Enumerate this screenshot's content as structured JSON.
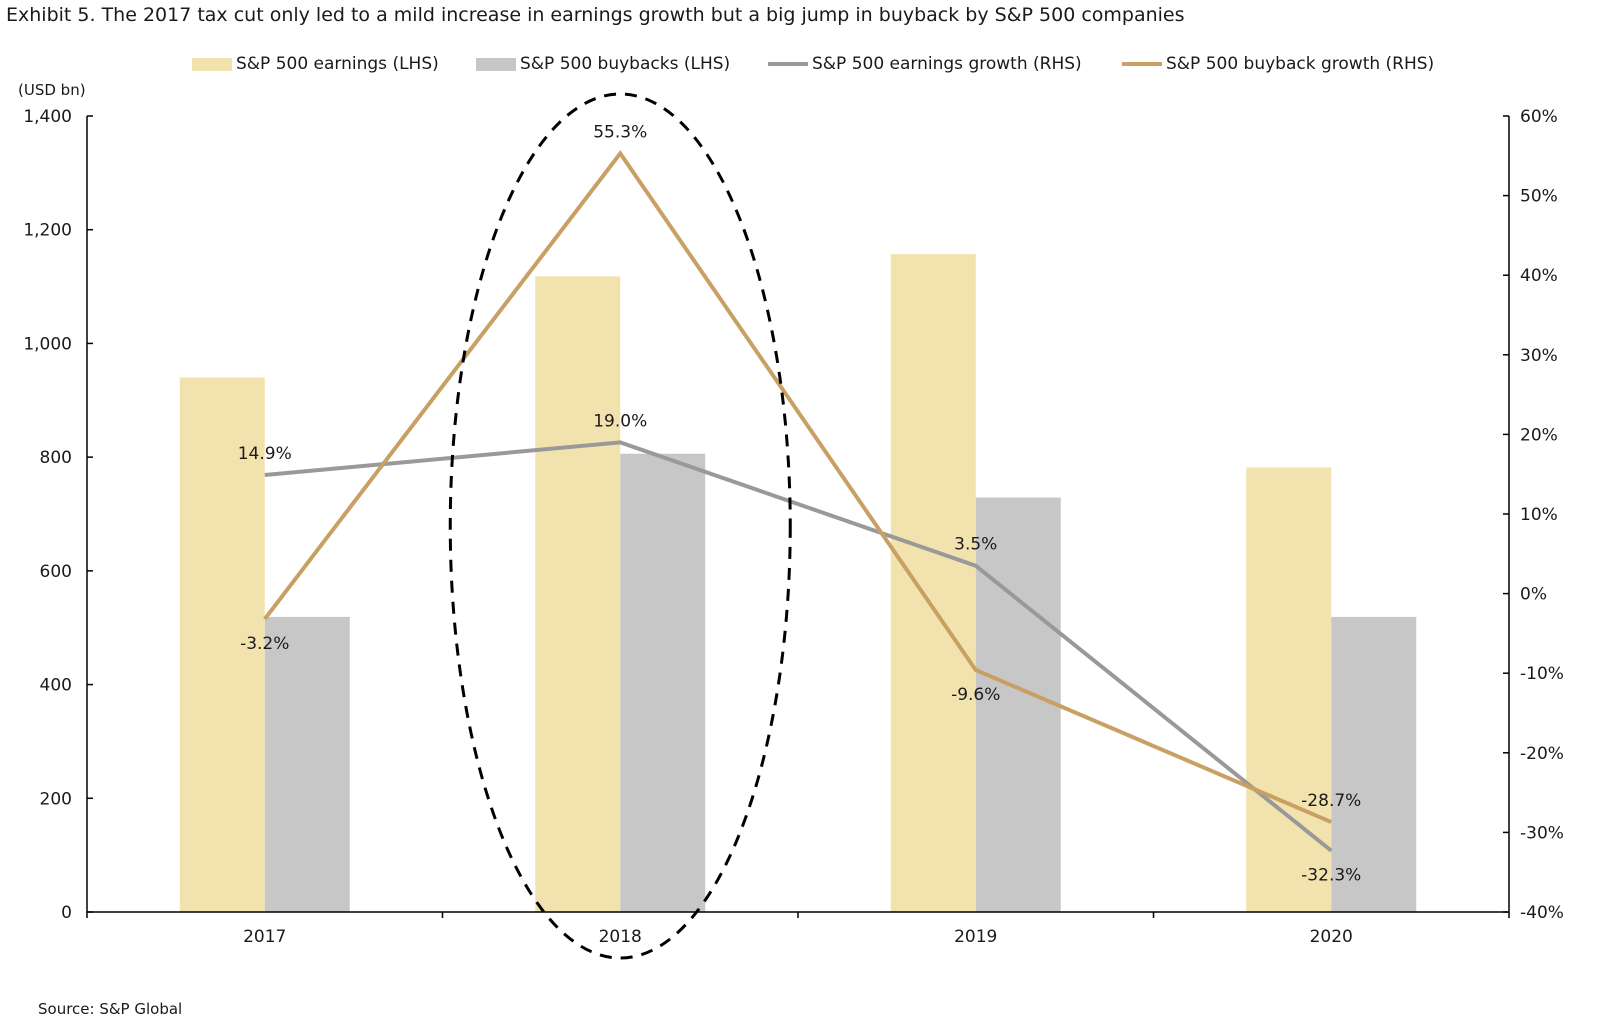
{
  "title": "Exhibit 5. The 2017 tax cut only led to a mild increase in earnings growth but a big jump in buyback by S&P 500 companies",
  "source": "Source: S&P Global",
  "colors": {
    "earnings": "#f2e3ae",
    "buybacks": "#c7c7c7",
    "earnings_growth": "#999999",
    "buyback_growth": "#c9a064",
    "axis": "#000000"
  },
  "legend": [
    {
      "label": "S&P 500 earnings (LHS)",
      "kind": "box",
      "color_key": "earnings"
    },
    {
      "label": "S&P 500 buybacks (LHS)",
      "kind": "box",
      "color_key": "buybacks"
    },
    {
      "label": "S&P 500 earnings growth (RHS)",
      "kind": "line",
      "color_key": "earnings_growth"
    },
    {
      "label": "S&P 500 buyback growth (RHS)",
      "kind": "line",
      "color_key": "buyback_growth"
    }
  ],
  "chart_data": {
    "type": "bar",
    "title": "Exhibit 5. The 2017 tax cut only led to a mild increase in earnings growth but a big jump in buyback by S&P 500 companies",
    "categories": [
      "2017",
      "2018",
      "2019",
      "2020"
    ],
    "y_left": {
      "label": "(USD bn)",
      "range": [
        0,
        1400
      ],
      "ticks": [
        0,
        200,
        400,
        600,
        800,
        1000,
        1200,
        1400
      ],
      "tick_labels": [
        "0",
        "200",
        "400",
        "600",
        "800",
        "1,000",
        "1,200",
        "1,400"
      ]
    },
    "y_right": {
      "range": [
        -40,
        60
      ],
      "ticks": [
        -40,
        -30,
        -20,
        -10,
        0,
        10,
        20,
        30,
        40,
        50,
        60
      ],
      "tick_labels": [
        "-40%",
        "-30%",
        "-20%",
        "-10%",
        "0%",
        "10%",
        "20%",
        "30%",
        "40%",
        "50%",
        "60%"
      ]
    },
    "bar_series": [
      {
        "name": "S&P 500 earnings (LHS)",
        "color_key": "earnings",
        "values": [
          940,
          1118,
          1157,
          782
        ]
      },
      {
        "name": "S&P 500 buybacks (LHS)",
        "color_key": "buybacks",
        "values": [
          519,
          806,
          729,
          519
        ]
      }
    ],
    "line_series": [
      {
        "name": "S&P 500 earnings growth (RHS)",
        "color_key": "earnings_growth",
        "values": [
          14.9,
          19.0,
          3.5,
          -32.3
        ],
        "labels": [
          "14.9%",
          "19.0%",
          "3.5%",
          "-32.3%"
        ],
        "label_pos": [
          "above",
          "above",
          "above",
          "below"
        ]
      },
      {
        "name": "S&P 500 buyback growth (RHS)",
        "color_key": "buyback_growth",
        "values": [
          -3.2,
          55.3,
          -9.6,
          -28.7
        ],
        "labels": [
          "-3.2%",
          "55.3%",
          "-9.6%",
          "-28.7%"
        ],
        "label_pos": [
          "below",
          "above",
          "below",
          "above"
        ]
      }
    ],
    "annotation": {
      "type": "dashed-ellipse",
      "around_category": "2018"
    },
    "legend_position": "top"
  }
}
